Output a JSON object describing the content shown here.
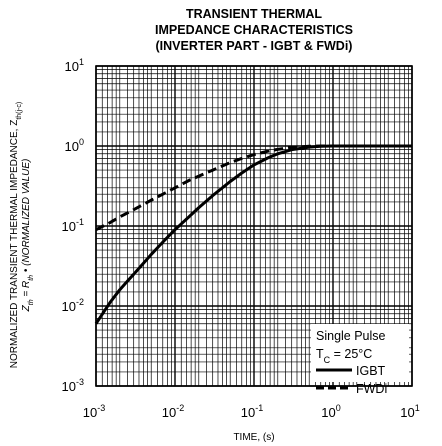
{
  "chart_data": {
    "type": "line",
    "title_lines": [
      "TRANSIENT THERMAL",
      "IMPEDANCE CHARACTERISTICS",
      "(INVERTER PART - IGBT & FWDi)"
    ],
    "xlabel": "TIME, (s)",
    "ylabel_line1": {
      "text": "NORMALIZED TRANSIENT THERMAL IMPEDANCE, Z",
      "sub": "th(j-c)"
    },
    "ylabel_line2": {
      "z": "Z",
      "z_sub": "th",
      "eq": " = R",
      "r_sub": "th",
      "rest": " • (NORMALIZED VALUE)"
    },
    "x_scale": "log",
    "y_scale": "log",
    "xlim": [
      0.001,
      10
    ],
    "ylim": [
      0.001,
      10
    ],
    "x_ticks": [
      {
        "value": 0.001,
        "base": "10",
        "exp": "-3"
      },
      {
        "value": 0.01,
        "base": "10",
        "exp": "-2"
      },
      {
        "value": 0.1,
        "base": "10",
        "exp": "-1"
      },
      {
        "value": 1,
        "base": "10",
        "exp": "0"
      },
      {
        "value": 10,
        "base": "10",
        "exp": "1"
      }
    ],
    "y_ticks": [
      {
        "value": 0.001,
        "base": "10",
        "exp": "-3"
      },
      {
        "value": 0.01,
        "base": "10",
        "exp": "-2"
      },
      {
        "value": 0.1,
        "base": "10",
        "exp": "-1"
      },
      {
        "value": 1,
        "base": "10",
        "exp": "0"
      },
      {
        "value": 10,
        "base": "10",
        "exp": "1"
      }
    ],
    "grid": true,
    "legend": {
      "position": "bottom-right",
      "header": "Single Pulse",
      "condition": {
        "t": "T",
        "sub": "C",
        "rest": " = 25°C"
      }
    },
    "series": [
      {
        "name": "IGBT",
        "style": "solid",
        "color": "#000000",
        "x": [
          0.001,
          0.0015,
          0.002,
          0.003,
          0.005,
          0.007,
          0.01,
          0.015,
          0.02,
          0.03,
          0.05,
          0.07,
          0.1,
          0.15,
          0.2,
          0.3,
          0.5,
          0.7,
          1,
          2,
          5,
          10
        ],
        "y": [
          0.006,
          0.011,
          0.016,
          0.025,
          0.044,
          0.063,
          0.09,
          0.13,
          0.17,
          0.24,
          0.36,
          0.46,
          0.58,
          0.71,
          0.8,
          0.9,
          0.97,
          0.99,
          1.0,
          1.0,
          1.0,
          1.0
        ]
      },
      {
        "name": "FWDi",
        "style": "dashed",
        "color": "#000000",
        "x": [
          0.001,
          0.0015,
          0.002,
          0.003,
          0.005,
          0.007,
          0.01,
          0.015,
          0.02,
          0.03,
          0.05,
          0.07,
          0.1,
          0.15,
          0.2,
          0.3,
          0.5,
          0.7,
          1,
          2,
          5,
          10
        ],
        "y": [
          0.09,
          0.11,
          0.13,
          0.16,
          0.21,
          0.25,
          0.3,
          0.37,
          0.42,
          0.5,
          0.62,
          0.7,
          0.78,
          0.86,
          0.91,
          0.96,
          0.99,
          1.0,
          1.0,
          1.0,
          1.0,
          1.0
        ]
      }
    ]
  }
}
